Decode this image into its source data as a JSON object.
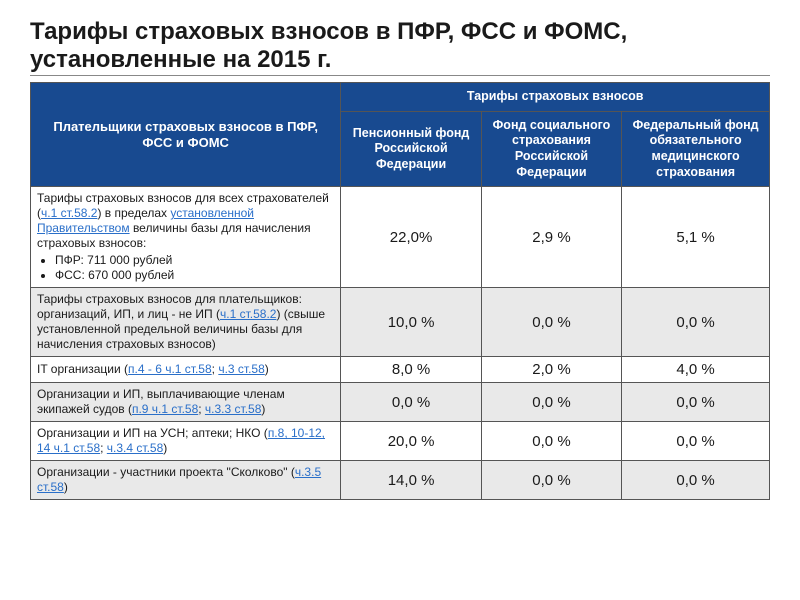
{
  "title": "Тарифы страховых взносов в ПФР, ФСС и ФОМС, установленные на 2015 г.",
  "header": {
    "payers": "Плательщики страховых взносов в ПФР, ФСС и ФОМС",
    "group": "Тарифы страховых взносов",
    "col_pfr": "Пенсионный фонд Российской Федерации",
    "col_fss": "Фонд социального страхования Российской Федерации",
    "col_foms": "Федеральный фонд обязательного медицинского страхования"
  },
  "rows": [
    {
      "pfr": "22,0%",
      "fss": "2,9 %",
      "foms": "5,1 %",
      "text_a": "Тарифы страховых взносов для всех страхователей (",
      "link_a": "ч.1 ст.58.2",
      "text_b": ") в пределах ",
      "link_b": "установленной Правительством",
      "text_c": " величины базы для начисления страховых взносов:",
      "bullet1": "ПФР: 711 000 рублей",
      "bullet2": "ФСС: 670 000 рублей"
    },
    {
      "pfr": "10,0 %",
      "fss": "0,0 %",
      "foms": "0,0 %",
      "text_a": "Тарифы страховых взносов для плательщиков: организаций, ИП, и лиц - не ИП (",
      "link_a": "ч.1 ст.58.2",
      "text_b": ") (свыше установленной предельной величины базы для начисления страховых взносов)"
    },
    {
      "pfr": "8,0 %",
      "fss": "2,0 %",
      "foms": "4,0 %",
      "text_a": "IT организации (",
      "link_a": "п.4 - 6 ч.1 ст.58",
      "text_b": "; ",
      "link_b": "ч.3 ст.58",
      "text_c": ")"
    },
    {
      "pfr": "0,0 %",
      "fss": "0,0 %",
      "foms": "0,0 %",
      "text_a": "Организации и ИП, выплачивающие членам экипажей судов (",
      "link_a": "п.9 ч.1 ст.58",
      "text_b": "; ",
      "link_b": "ч.3.3 ст.58",
      "text_c": ")"
    },
    {
      "pfr": "20,0 %",
      "fss": "0,0 %",
      "foms": "0,0 %",
      "text_a": "Организации и ИП на УСН; аптеки; НКО (",
      "link_a": "п.8, 10-12, 14 ч.1 ст.58",
      "text_b": "; ",
      "link_b": "ч.3.4 ст.58",
      "text_c": ")"
    },
    {
      "pfr": "14,0 %",
      "fss": "0,0 %",
      "foms": "0,0 %",
      "text_a": "Организации - участники проекта \"Сколково\" (",
      "link_a": "ч.3.5 ст.58",
      "text_b": ")"
    }
  ]
}
